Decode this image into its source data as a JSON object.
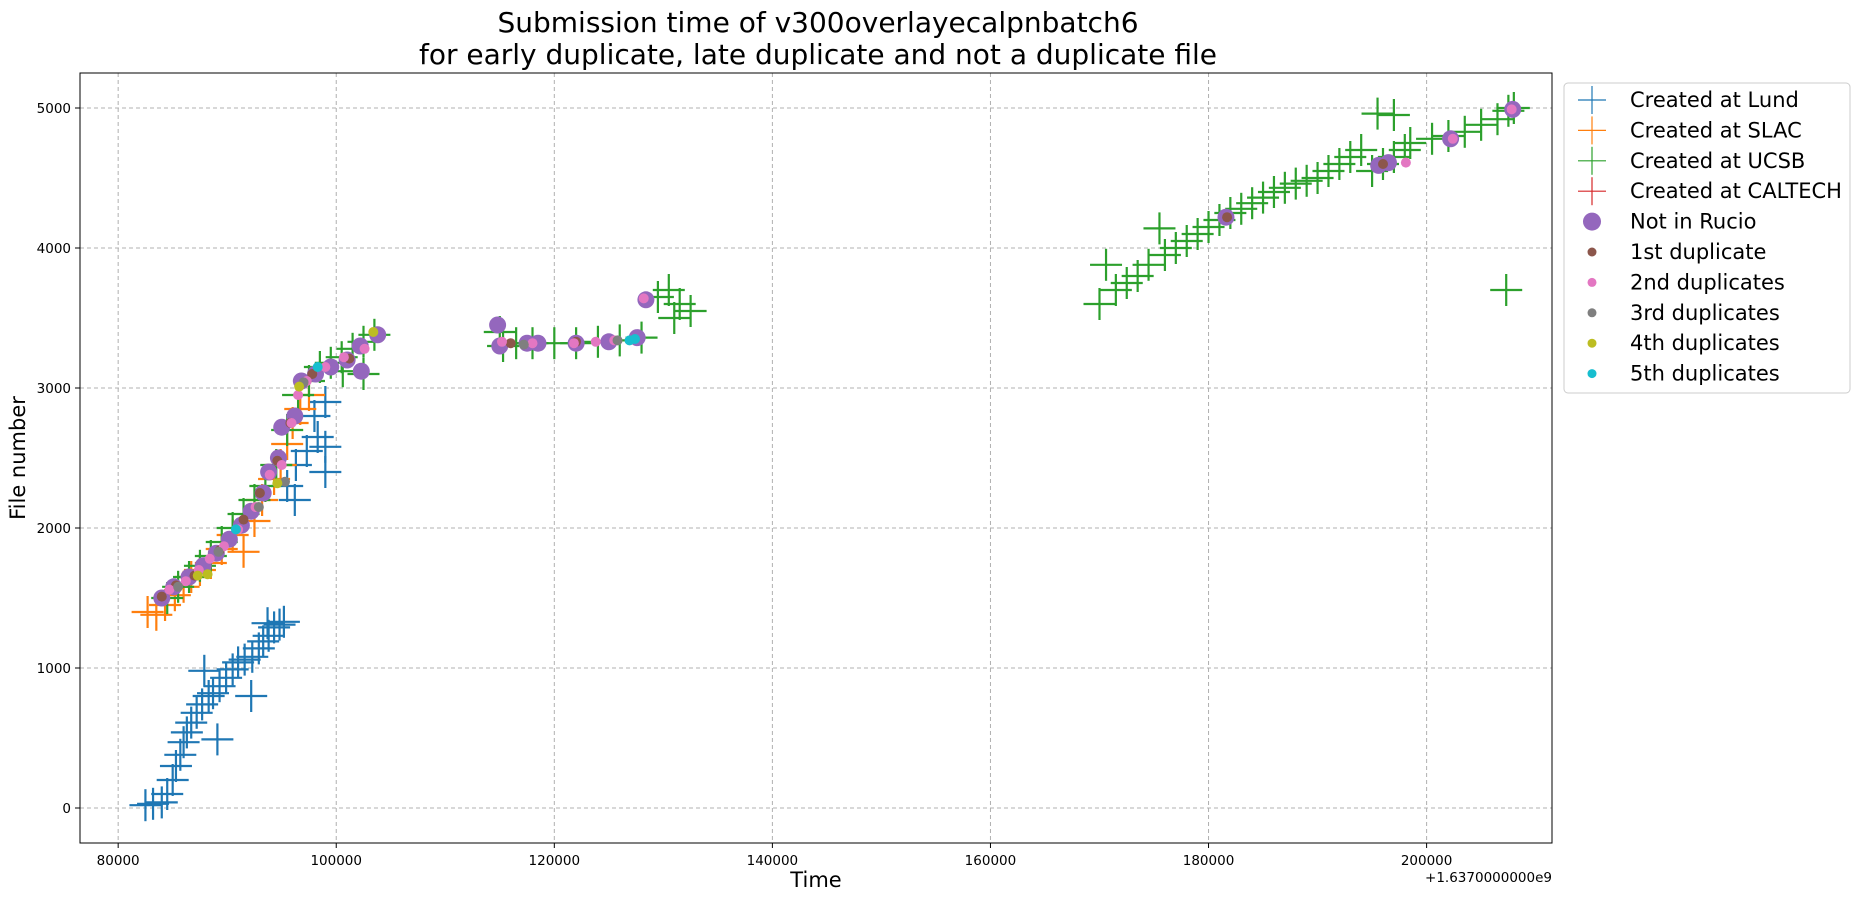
{
  "chart_data": {
    "type": "scatter",
    "title_lines": [
      "Submission time of v300overlayecalpnbatch6",
      "for early duplicate, late duplicate and not a duplicate file"
    ],
    "xlabel": "Time",
    "ylabel": "File number",
    "x_offset_label": "+1.6370000000e9",
    "xlim": [
      76500,
      211500
    ],
    "ylim": [
      -250,
      5250
    ],
    "x_ticks": [
      80000,
      100000,
      120000,
      140000,
      160000,
      180000,
      200000
    ],
    "x_tick_labels": [
      "80000",
      "100000",
      "120000",
      "140000",
      "160000",
      "180000",
      "200000"
    ],
    "y_ticks": [
      0,
      1000,
      2000,
      3000,
      4000,
      5000
    ],
    "y_tick_labels": [
      "0",
      "1000",
      "2000",
      "3000",
      "4000",
      "5000"
    ],
    "grid": true,
    "legend_position": "outside-right",
    "series": [
      {
        "name": "Created at Lund",
        "marker": "plus",
        "color": "#1f77b4",
        "points": [
          [
            82500,
            20
          ],
          [
            83200,
            30
          ],
          [
            84000,
            40
          ],
          [
            84500,
            100
          ],
          [
            85000,
            200
          ],
          [
            85300,
            300
          ],
          [
            85700,
            380
          ],
          [
            86000,
            470
          ],
          [
            86300,
            540
          ],
          [
            86700,
            610
          ],
          [
            87200,
            680
          ],
          [
            87700,
            740
          ],
          [
            88300,
            800
          ],
          [
            88700,
            820
          ],
          [
            89300,
            870
          ],
          [
            89900,
            930
          ],
          [
            90500,
            990
          ],
          [
            91000,
            1040
          ],
          [
            91600,
            1060
          ],
          [
            92300,
            1080
          ],
          [
            92900,
            1140
          ],
          [
            93300,
            1190
          ],
          [
            93800,
            1230
          ],
          [
            94300,
            1290
          ],
          [
            94800,
            1310
          ],
          [
            95200,
            1330
          ],
          [
            87900,
            980
          ],
          [
            89100,
            490
          ],
          [
            92200,
            800
          ],
          [
            93700,
            1320
          ],
          [
            95500,
            2300
          ],
          [
            96300,
            2450
          ],
          [
            97300,
            2550
          ],
          [
            98300,
            2650
          ],
          [
            99000,
            2580
          ],
          [
            98000,
            2800
          ],
          [
            99000,
            2900
          ],
          [
            99000,
            2400
          ],
          [
            96200,
            2200
          ]
        ]
      },
      {
        "name": "Created at SLAC",
        "marker": "plus",
        "color": "#ff7f0e",
        "points": [
          [
            82700,
            1400
          ],
          [
            83500,
            1380
          ],
          [
            84300,
            1450
          ],
          [
            85200,
            1520
          ],
          [
            86000,
            1580
          ],
          [
            86700,
            1650
          ],
          [
            87500,
            1700
          ],
          [
            88500,
            1750
          ],
          [
            89500,
            1850
          ],
          [
            90500,
            1950
          ],
          [
            91500,
            1830
          ],
          [
            92500,
            2050
          ],
          [
            93200,
            2200
          ],
          [
            94300,
            2350
          ],
          [
            94900,
            2450
          ],
          [
            95500,
            2600
          ],
          [
            96000,
            2750
          ],
          [
            96700,
            2850
          ],
          [
            97500,
            2950
          ]
        ]
      },
      {
        "name": "Created at UCSB",
        "marker": "plus",
        "color": "#2ca02c",
        "points": [
          [
            84500,
            1500
          ],
          [
            85500,
            1580
          ],
          [
            86500,
            1650
          ],
          [
            87500,
            1730
          ],
          [
            88500,
            1800
          ],
          [
            89500,
            1900
          ],
          [
            90500,
            2000
          ],
          [
            91500,
            2100
          ],
          [
            92500,
            2200
          ],
          [
            93500,
            2300
          ],
          [
            94500,
            2450
          ],
          [
            95500,
            2700
          ],
          [
            96500,
            2950
          ],
          [
            97500,
            3050
          ],
          [
            98500,
            3150
          ],
          [
            99500,
            3180
          ],
          [
            100500,
            3220
          ],
          [
            101500,
            3280
          ],
          [
            102500,
            3330
          ],
          [
            103500,
            3380
          ],
          [
            100600,
            3120
          ],
          [
            102500,
            3100
          ],
          [
            115000,
            3400
          ],
          [
            115300,
            3300
          ],
          [
            116500,
            3320
          ],
          [
            118000,
            3320
          ],
          [
            120000,
            3320
          ],
          [
            122000,
            3320
          ],
          [
            124000,
            3330
          ],
          [
            126000,
            3340
          ],
          [
            128000,
            3360
          ],
          [
            129500,
            3650
          ],
          [
            130500,
            3700
          ],
          [
            131500,
            3600
          ],
          [
            132500,
            3550
          ],
          [
            131000,
            3500
          ],
          [
            170000,
            3600
          ],
          [
            170600,
            3880
          ],
          [
            171500,
            3700
          ],
          [
            172500,
            3750
          ],
          [
            173500,
            3800
          ],
          [
            174500,
            3880
          ],
          [
            175500,
            4140
          ],
          [
            176000,
            3950
          ],
          [
            177000,
            4000
          ],
          [
            178000,
            4050
          ],
          [
            179000,
            4100
          ],
          [
            180000,
            4150
          ],
          [
            181000,
            4200
          ],
          [
            182000,
            4250
          ],
          [
            183000,
            4280
          ],
          [
            184000,
            4320
          ],
          [
            185000,
            4360
          ],
          [
            186000,
            4400
          ],
          [
            187000,
            4430
          ],
          [
            188000,
            4460
          ],
          [
            189000,
            4480
          ],
          [
            190000,
            4500
          ],
          [
            191000,
            4550
          ],
          [
            192000,
            4600
          ],
          [
            193000,
            4650
          ],
          [
            194000,
            4700
          ],
          [
            195000,
            4550
          ],
          [
            196000,
            4600
          ],
          [
            197000,
            4650
          ],
          [
            198000,
            4700
          ],
          [
            195500,
            4960
          ],
          [
            197000,
            4950
          ],
          [
            198500,
            4750
          ],
          [
            200500,
            4780
          ],
          [
            202000,
            4800
          ],
          [
            203500,
            4830
          ],
          [
            205000,
            4880
          ],
          [
            206500,
            4920
          ],
          [
            207500,
            4980
          ],
          [
            208000,
            5000
          ],
          [
            207300,
            3700
          ]
        ]
      },
      {
        "name": "Created at CALTECH",
        "marker": "plus",
        "color": "#d62728",
        "points": []
      },
      {
        "name": "Not in Rucio",
        "marker": "circle-large",
        "color": "#9467bd",
        "points": [
          [
            84000,
            1500
          ],
          [
            85100,
            1580
          ],
          [
            86500,
            1650
          ],
          [
            87800,
            1730
          ],
          [
            89000,
            1820
          ],
          [
            90200,
            1920
          ],
          [
            91300,
            2020
          ],
          [
            92200,
            2120
          ],
          [
            93300,
            2250
          ],
          [
            93800,
            2400
          ],
          [
            94700,
            2500
          ],
          [
            95000,
            2720
          ],
          [
            96200,
            2800
          ],
          [
            96800,
            3050
          ],
          [
            98100,
            3100
          ],
          [
            99500,
            3150
          ],
          [
            101000,
            3200
          ],
          [
            102200,
            3300
          ],
          [
            103800,
            3380
          ],
          [
            102300,
            3120
          ],
          [
            114800,
            3450
          ],
          [
            115000,
            3300
          ],
          [
            117500,
            3320
          ],
          [
            118500,
            3320
          ],
          [
            122000,
            3320
          ],
          [
            125000,
            3330
          ],
          [
            127600,
            3360
          ],
          [
            128400,
            3630
          ],
          [
            181600,
            4220
          ],
          [
            195600,
            4590
          ],
          [
            196500,
            4610
          ],
          [
            202200,
            4780
          ],
          [
            207900,
            4990
          ]
        ]
      },
      {
        "name": "1st duplicate",
        "marker": "dot",
        "color": "#8c564b",
        "points": [
          [
            84000,
            1510
          ],
          [
            85300,
            1590
          ],
          [
            87000,
            1660
          ],
          [
            89300,
            1840
          ],
          [
            91500,
            2060
          ],
          [
            93000,
            2250
          ],
          [
            94600,
            2480
          ],
          [
            95800,
            2750
          ],
          [
            97800,
            3100
          ],
          [
            101200,
            3210
          ],
          [
            116000,
            3320
          ],
          [
            122000,
            3330
          ],
          [
            181700,
            4220
          ],
          [
            196000,
            4600
          ]
        ]
      },
      {
        "name": "2nd duplicates",
        "marker": "dot",
        "color": "#e377c2",
        "points": [
          [
            84700,
            1560
          ],
          [
            86200,
            1620
          ],
          [
            87400,
            1700
          ],
          [
            88400,
            1780
          ],
          [
            89700,
            1870
          ],
          [
            91000,
            1990
          ],
          [
            92600,
            2150
          ],
          [
            93900,
            2380
          ],
          [
            95000,
            2450
          ],
          [
            95900,
            2750
          ],
          [
            96500,
            2950
          ],
          [
            97300,
            3050
          ],
          [
            99000,
            3150
          ],
          [
            100700,
            3220
          ],
          [
            102600,
            3280
          ],
          [
            115200,
            3330
          ],
          [
            118000,
            3320
          ],
          [
            121800,
            3320
          ],
          [
            123800,
            3330
          ],
          [
            125500,
            3340
          ],
          [
            128200,
            3640
          ],
          [
            198100,
            4610
          ],
          [
            202400,
            4780
          ],
          [
            207800,
            4990
          ]
        ]
      },
      {
        "name": "3rd duplicates",
        "marker": "dot",
        "color": "#7f7f7f",
        "points": [
          [
            85500,
            1580
          ],
          [
            89200,
            1830
          ],
          [
            92900,
            2150
          ],
          [
            95300,
            2330
          ],
          [
            97000,
            3040
          ],
          [
            117200,
            3310
          ],
          [
            125800,
            3340
          ]
        ]
      },
      {
        "name": "4th duplicates",
        "marker": "dot",
        "color": "#bcbd22",
        "points": [
          [
            87300,
            1660
          ],
          [
            88200,
            1670
          ],
          [
            94600,
            2320
          ],
          [
            96600,
            3010
          ],
          [
            103400,
            3400
          ]
        ]
      },
      {
        "name": "5th duplicates",
        "marker": "dot",
        "color": "#17becf",
        "points": [
          [
            90800,
            1990
          ],
          [
            98300,
            3150
          ],
          [
            126900,
            3340
          ],
          [
            127400,
            3350
          ]
        ]
      }
    ]
  }
}
